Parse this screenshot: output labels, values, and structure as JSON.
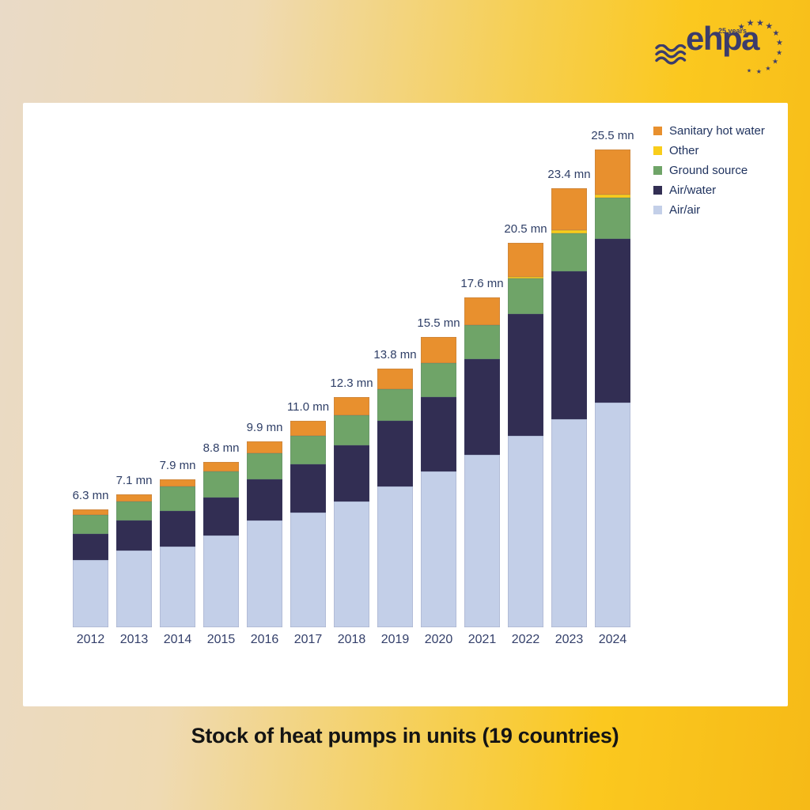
{
  "page": {
    "caption": "Stock of heat pumps in units (19 countries)"
  },
  "logo": {
    "text": "ehpa",
    "badge": "25 years",
    "star_glyph": "★",
    "color": "#3b3c6b"
  },
  "colors": {
    "background_left": "#e9dac7",
    "background_right": "#f6ba17",
    "panel": "#ffffff",
    "label_text": "#2e3e66",
    "title_text": "#141414",
    "logo_navy": "#3b3c6b"
  },
  "chart_data": {
    "type": "bar",
    "stacked": true,
    "title": "Stock of heat pumps in units (19 countries)",
    "unit": "mn",
    "gridlines": false,
    "y_axis_visible": false,
    "categories": [
      "2012",
      "2013",
      "2014",
      "2015",
      "2016",
      "2017",
      "2018",
      "2019",
      "2020",
      "2021",
      "2022",
      "2023",
      "2024"
    ],
    "totals": [
      6.3,
      7.1,
      7.9,
      8.8,
      9.9,
      11.0,
      12.3,
      13.8,
      15.5,
      17.6,
      20.5,
      23.4,
      25.5
    ],
    "total_labels": [
      "6.3 mn",
      "7.1 mn",
      "7.9 mn",
      "8.8 mn",
      "9.9 mn",
      "11.0 mn",
      "12.3 mn",
      "13.8 mn",
      "15.5 mn",
      "17.6 mn",
      "20.5 mn",
      "23.4 mn",
      "25.5 mn"
    ],
    "series": [
      {
        "name": "Air/air",
        "color": "#c3cfe8",
        "values": [
          3.6,
          4.1,
          4.3,
          4.9,
          5.7,
          6.1,
          6.7,
          7.5,
          8.3,
          9.2,
          10.2,
          11.1,
          12.0
        ]
      },
      {
        "name": "Air/water",
        "color": "#322e53",
        "values": [
          1.4,
          1.6,
          1.9,
          2.0,
          2.2,
          2.6,
          3.0,
          3.5,
          4.0,
          5.1,
          6.5,
          7.9,
          8.7
        ]
      },
      {
        "name": "Ground source",
        "color": "#6fa468",
        "values": [
          1.0,
          1.0,
          1.3,
          1.4,
          1.4,
          1.5,
          1.6,
          1.7,
          1.8,
          1.8,
          1.9,
          2.0,
          2.2
        ]
      },
      {
        "name": "Other",
        "color": "#f9cd1b",
        "values": [
          0,
          0,
          0,
          0,
          0,
          0,
          0,
          0,
          0,
          0,
          0.1,
          0.2,
          0.2
        ]
      },
      {
        "name": "Sanitary hot water",
        "color": "#e8902e",
        "values": [
          0.3,
          0.4,
          0.4,
          0.5,
          0.6,
          0.8,
          1.0,
          1.1,
          1.4,
          1.5,
          1.8,
          2.2,
          2.4
        ]
      }
    ],
    "legend": {
      "position": "top-right",
      "entries_top_to_bottom": [
        "Sanitary hot water",
        "Other",
        "Ground source",
        "Air/water",
        "Air/air"
      ]
    }
  }
}
